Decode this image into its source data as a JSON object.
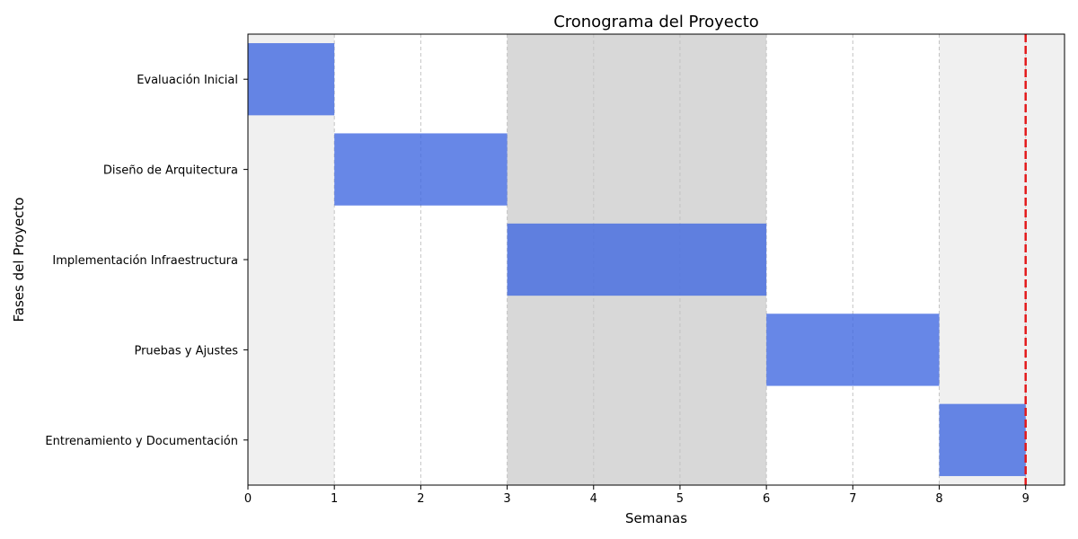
{
  "chart_data": {
    "type": "bar",
    "orientation": "horizontal",
    "variant": "gantt",
    "title": "Cronograma del Proyecto",
    "xlabel": "Semanas",
    "ylabel": "Fases del Proyecto",
    "xlim": [
      0,
      9.45
    ],
    "xticks": [
      0,
      1,
      2,
      3,
      4,
      5,
      6,
      7,
      8,
      9
    ],
    "grid": "x-dashed",
    "categories": [
      "Evaluación Inicial",
      "Diseño de Arquitectura",
      "Implementación Infraestructura",
      "Pruebas y Ajustes",
      "Entrenamiento y Documentación"
    ],
    "tasks": [
      {
        "name": "Evaluación Inicial",
        "start": 0,
        "duration": 1
      },
      {
        "name": "Diseño de Arquitectura",
        "start": 1,
        "duration": 2
      },
      {
        "name": "Implementación Infraestructura",
        "start": 3,
        "duration": 3
      },
      {
        "name": "Pruebas y Ajustes",
        "start": 6,
        "duration": 2
      },
      {
        "name": "Entrenamiento y Documentación",
        "start": 8,
        "duration": 1
      }
    ],
    "shaded_bands": [
      {
        "start": 0,
        "end": 1,
        "color": "#f0f0f0"
      },
      {
        "start": 3,
        "end": 6,
        "color": "#d8d8d8"
      },
      {
        "start": 8,
        "end": 9.45,
        "color": "#f0f0f0"
      }
    ],
    "reference_line": {
      "x": 9,
      "color": "#e31a1c",
      "style": "dashed"
    },
    "bar_color": "#4169e1"
  }
}
